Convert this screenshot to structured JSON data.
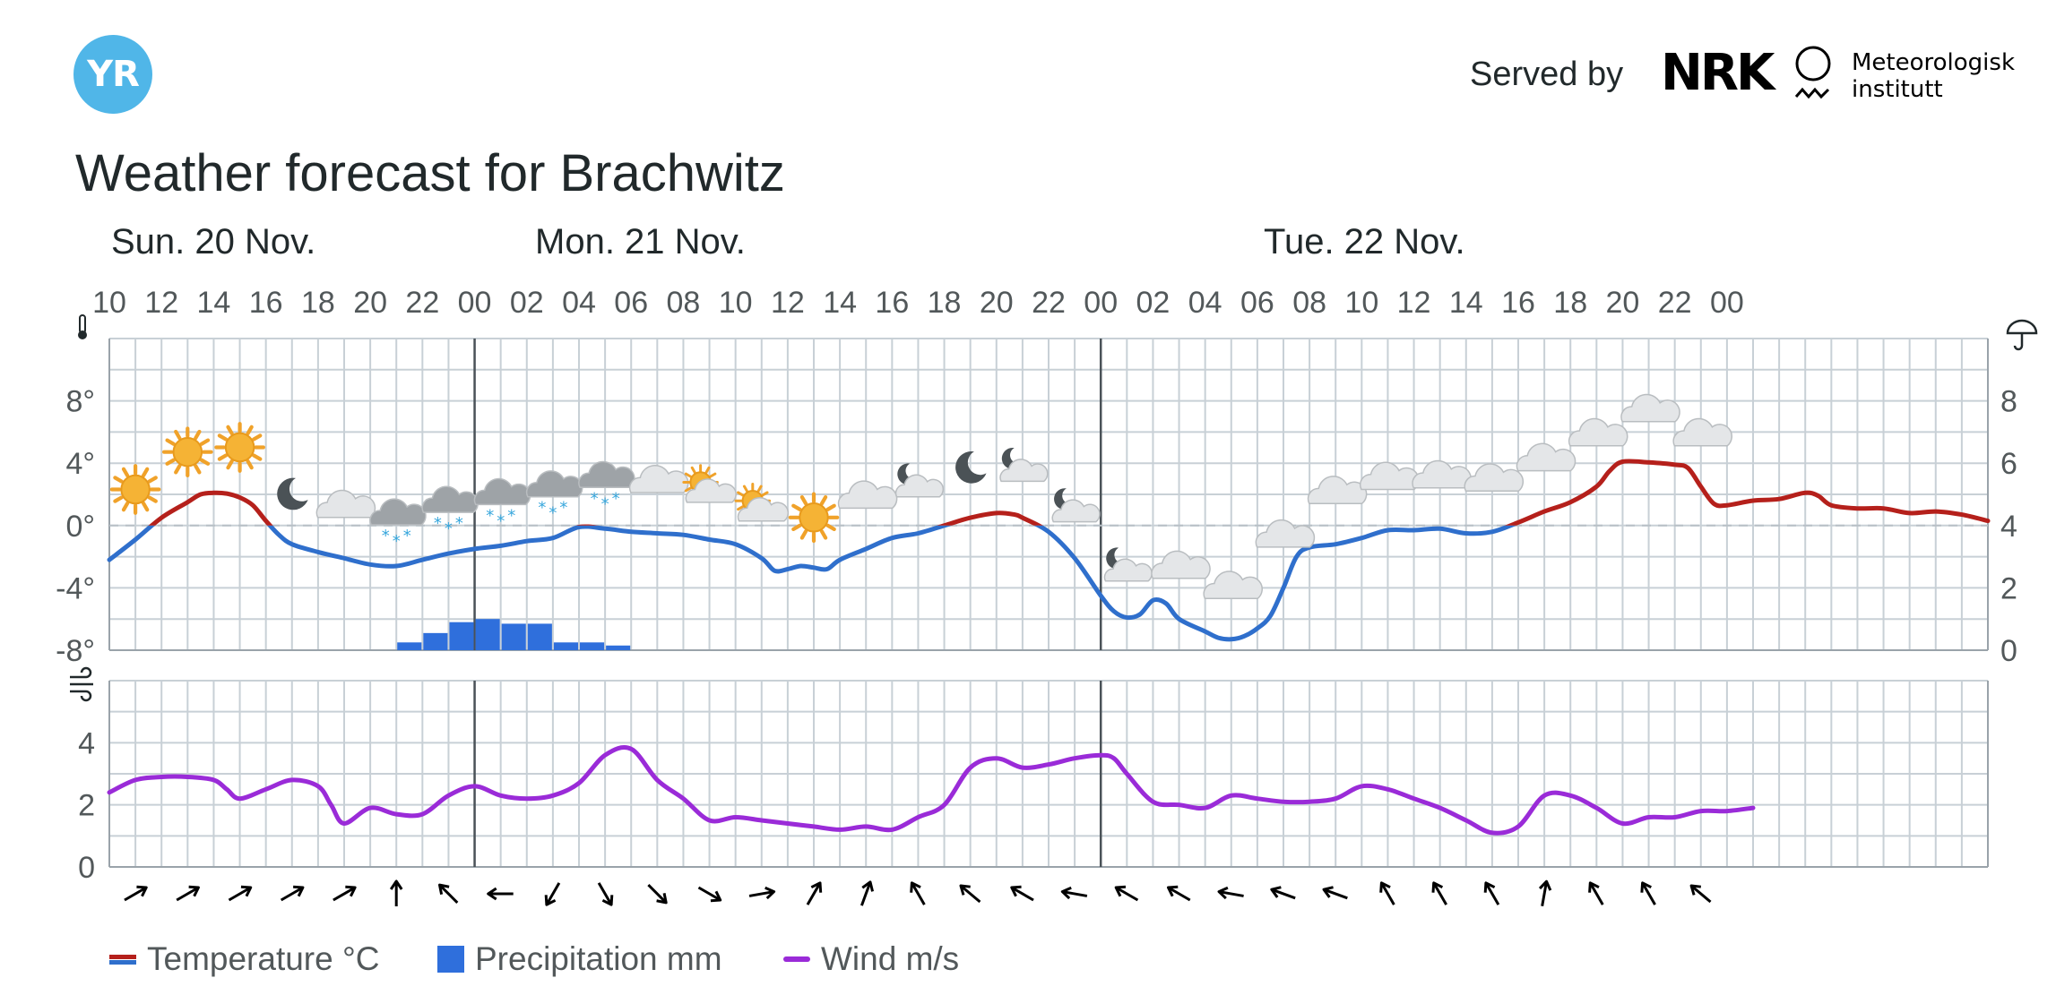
{
  "header": {
    "logo_text": "YR",
    "served_by": "Served by",
    "partner1": "NRK",
    "partner2_line1": "Meteorologisk",
    "partner2_line2": "institutt"
  },
  "title": "Weather forecast for Brachwitz",
  "days": [
    {
      "label": "Sun. 20 Nov."
    },
    {
      "label": "Mon. 21 Nov."
    },
    {
      "label": "Tue. 22 Nov."
    }
  ],
  "legend": {
    "temperature": "Temperature °C",
    "precipitation": "Precipitation mm",
    "wind": "Wind m/s"
  },
  "colors": {
    "temp_above_zero": "#b5201b",
    "temp_below_zero": "#2f6fcc",
    "precipitation": "#2f6fdc",
    "wind": "#9a2bd8",
    "grid": "#c8d0d6",
    "day_divider": "#4a5258"
  },
  "chart_data": {
    "type": "line",
    "x_hour_labels": [
      "10",
      "12",
      "14",
      "16",
      "18",
      "20",
      "22",
      "00",
      "02",
      "04",
      "06",
      "08",
      "10",
      "12",
      "14",
      "16",
      "18",
      "20",
      "22",
      "00",
      "02",
      "04",
      "06",
      "08",
      "10",
      "12",
      "14",
      "16",
      "18",
      "20",
      "22",
      "00"
    ],
    "x_range_hours": [
      0,
      62
    ],
    "temperature": {
      "name": "Temperature °C",
      "yticks": [
        "8°",
        "4°",
        "0°",
        "-4°",
        "-8°"
      ],
      "ylim": [
        -8,
        12
      ],
      "points": [
        [
          0,
          -2.2
        ],
        [
          1,
          -0.9
        ],
        [
          2,
          0.5
        ],
        [
          3,
          1.5
        ],
        [
          3.5,
          2.0
        ],
        [
          4,
          2.1
        ],
        [
          4.5,
          2.05
        ],
        [
          5,
          1.8
        ],
        [
          5.5,
          1.3
        ],
        [
          6,
          0.3
        ],
        [
          6.5,
          -0.6
        ],
        [
          7,
          -1.2
        ],
        [
          8,
          -1.7
        ],
        [
          9,
          -2.1
        ],
        [
          10,
          -2.5
        ],
        [
          11,
          -2.6
        ],
        [
          12,
          -2.2
        ],
        [
          13,
          -1.8
        ],
        [
          14,
          -1.5
        ],
        [
          15,
          -1.3
        ],
        [
          16,
          -1.0
        ],
        [
          17,
          -0.8
        ],
        [
          18,
          -0.1
        ],
        [
          19,
          -0.2
        ],
        [
          20,
          -0.4
        ],
        [
          21,
          -0.5
        ],
        [
          22,
          -0.6
        ],
        [
          23,
          -0.9
        ],
        [
          24,
          -1.2
        ],
        [
          25,
          -2.1
        ],
        [
          25.5,
          -2.9
        ],
        [
          26,
          -2.8
        ],
        [
          26.5,
          -2.6
        ],
        [
          27,
          -2.7
        ],
        [
          27.5,
          -2.8
        ],
        [
          28,
          -2.2
        ],
        [
          29,
          -1.5
        ],
        [
          30,
          -0.8
        ],
        [
          31,
          -0.5
        ],
        [
          32,
          0.0
        ],
        [
          33,
          0.5
        ],
        [
          34,
          0.8
        ],
        [
          34.7,
          0.7
        ],
        [
          35,
          0.5
        ],
        [
          36,
          -0.4
        ],
        [
          37,
          -2.1
        ],
        [
          38,
          -4.5
        ],
        [
          38.5,
          -5.5
        ],
        [
          39,
          -5.9
        ],
        [
          39.5,
          -5.7
        ],
        [
          40,
          -4.8
        ],
        [
          40.5,
          -5.0
        ],
        [
          41,
          -6.0
        ],
        [
          42,
          -6.8
        ],
        [
          42.5,
          -7.2
        ],
        [
          43,
          -7.3
        ],
        [
          43.5,
          -7.1
        ],
        [
          44,
          -6.6
        ],
        [
          44.5,
          -5.8
        ],
        [
          45,
          -4.0
        ],
        [
          45.5,
          -2.0
        ],
        [
          46,
          -1.4
        ],
        [
          47,
          -1.2
        ],
        [
          48,
          -0.8
        ],
        [
          49,
          -0.3
        ],
        [
          50,
          -0.3
        ],
        [
          51,
          -0.2
        ],
        [
          52,
          -0.5
        ],
        [
          53,
          -0.4
        ],
        [
          54,
          0.2
        ],
        [
          55,
          0.9
        ],
        [
          56,
          1.5
        ],
        [
          57,
          2.5
        ],
        [
          57.5,
          3.5
        ],
        [
          58,
          4.1
        ],
        [
          59,
          4.05
        ],
        [
          60,
          3.9
        ],
        [
          60.5,
          3.7
        ],
        [
          61,
          2.5
        ],
        [
          61.5,
          1.4
        ],
        [
          62,
          1.3
        ],
        [
          63,
          1.6
        ],
        [
          64,
          1.7
        ],
        [
          65,
          2.1
        ],
        [
          65.5,
          1.9
        ],
        [
          66,
          1.3
        ],
        [
          67,
          1.1
        ],
        [
          68,
          1.1
        ],
        [
          69,
          0.8
        ],
        [
          70,
          0.9
        ],
        [
          71,
          0.7
        ],
        [
          72,
          0.3
        ]
      ]
    },
    "precipitation": {
      "name": "Precipitation mm",
      "yticks": [
        "8",
        "6",
        "4",
        "2",
        "0"
      ],
      "ylim": [
        0,
        10
      ],
      "bars": [
        {
          "hour_start": 11,
          "value": 0.25
        },
        {
          "hour_start": 12,
          "value": 0.55
        },
        {
          "hour_start": 13,
          "value": 0.9
        },
        {
          "hour_start": 14,
          "value": 1.0
        },
        {
          "hour_start": 15,
          "value": 0.85
        },
        {
          "hour_start": 16,
          "value": 0.85
        },
        {
          "hour_start": 17,
          "value": 0.25
        },
        {
          "hour_start": 18,
          "value": 0.25
        },
        {
          "hour_start": 19,
          "value": 0.15
        }
      ]
    },
    "wind": {
      "name": "Wind m/s",
      "yticks": [
        "4",
        "2",
        "0"
      ],
      "ylim": [
        0,
        6
      ],
      "points": [
        [
          0,
          2.4
        ],
        [
          1,
          2.8
        ],
        [
          2,
          2.9
        ],
        [
          3,
          2.9
        ],
        [
          4,
          2.8
        ],
        [
          4.5,
          2.5
        ],
        [
          5,
          2.2
        ],
        [
          6,
          2.5
        ],
        [
          7,
          2.8
        ],
        [
          8,
          2.6
        ],
        [
          8.5,
          2.0
        ],
        [
          9,
          1.4
        ],
        [
          10,
          1.9
        ],
        [
          11,
          1.7
        ],
        [
          12,
          1.7
        ],
        [
          13,
          2.3
        ],
        [
          14,
          2.6
        ],
        [
          15,
          2.3
        ],
        [
          16,
          2.2
        ],
        [
          17,
          2.3
        ],
        [
          18,
          2.7
        ],
        [
          19,
          3.6
        ],
        [
          20,
          3.8
        ],
        [
          21,
          2.8
        ],
        [
          22,
          2.2
        ],
        [
          23,
          1.5
        ],
        [
          24,
          1.6
        ],
        [
          25,
          1.5
        ],
        [
          26,
          1.4
        ],
        [
          27,
          1.3
        ],
        [
          28,
          1.2
        ],
        [
          29,
          1.3
        ],
        [
          30,
          1.2
        ],
        [
          31,
          1.6
        ],
        [
          32,
          2.0
        ],
        [
          33,
          3.2
        ],
        [
          34,
          3.5
        ],
        [
          35,
          3.2
        ],
        [
          36,
          3.3
        ],
        [
          37,
          3.5
        ],
        [
          38,
          3.6
        ],
        [
          38.5,
          3.5
        ],
        [
          39,
          3.0
        ],
        [
          40,
          2.1
        ],
        [
          41,
          2.0
        ],
        [
          42,
          1.9
        ],
        [
          43,
          2.3
        ],
        [
          44,
          2.2
        ],
        [
          45,
          2.1
        ],
        [
          46,
          2.1
        ],
        [
          47,
          2.2
        ],
        [
          48,
          2.6
        ],
        [
          49,
          2.5
        ],
        [
          50,
          2.2
        ],
        [
          51,
          1.9
        ],
        [
          52,
          1.5
        ],
        [
          53,
          1.1
        ],
        [
          54,
          1.3
        ],
        [
          55,
          2.3
        ],
        [
          56,
          2.3
        ],
        [
          57,
          1.9
        ],
        [
          58,
          1.4
        ],
        [
          59,
          1.6
        ],
        [
          60,
          1.6
        ],
        [
          61,
          1.8
        ],
        [
          62,
          1.8
        ],
        [
          63,
          1.9
        ]
      ]
    },
    "weather_symbols": [
      "sun",
      "sun",
      "sun",
      "moon",
      "cloud",
      "snow",
      "snow",
      "snow",
      "snow",
      "snow",
      "cloud",
      "partly-sunny",
      "partly-sunny",
      "sun",
      "cloud",
      "partly-moon",
      "moon",
      "partly-moon",
      "partly-moon",
      "partly-moon",
      "cloud",
      "cloud",
      "cloud",
      "cloud",
      "cloud",
      "cloud",
      "cloud",
      "cloud",
      "cloud",
      "cloud",
      "cloud"
    ],
    "wind_directions_deg": [
      240,
      240,
      240,
      240,
      240,
      180,
      135,
      90,
      30,
      330,
      315,
      300,
      260,
      210,
      200,
      150,
      130,
      120,
      100,
      120,
      120,
      100,
      110,
      110,
      150,
      150,
      150,
      190,
      150,
      150,
      130
    ]
  }
}
